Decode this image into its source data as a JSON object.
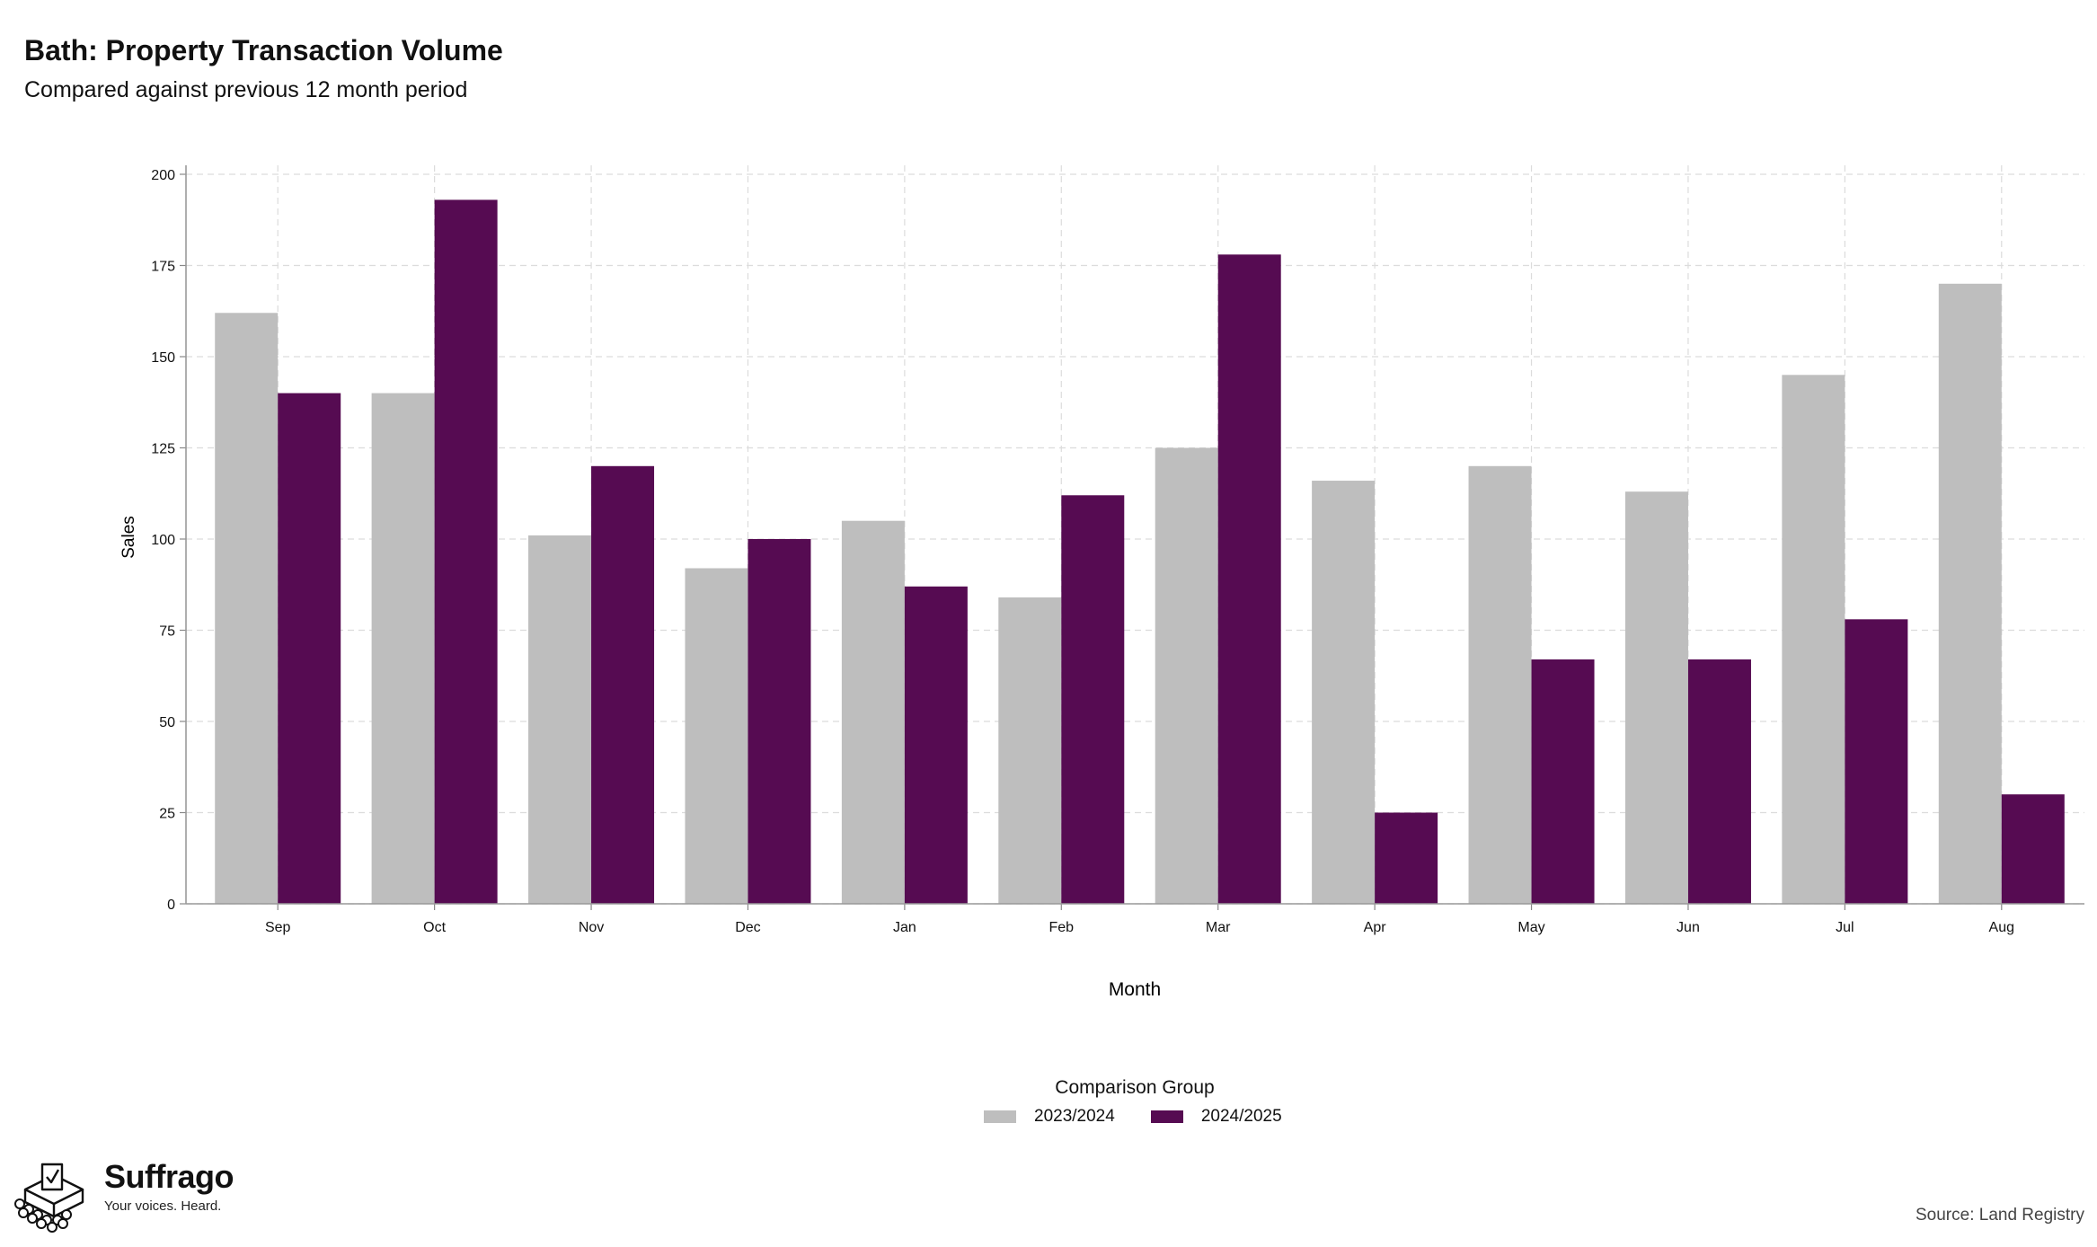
{
  "title": "Bath: Property Transaction Volume",
  "subtitle": "Compared against previous 12 month period",
  "source": "Source: Land Registry",
  "brand": {
    "name": "Suffrago",
    "tagline": "Your voices. Heard.",
    "logo_icon": "ballot-box-crowd-icon"
  },
  "legend": {
    "title": "Comparison Group",
    "items": [
      {
        "label": "2023/2024",
        "color": "#bebebe"
      },
      {
        "label": "2024/2025",
        "color": "#560b52"
      }
    ]
  },
  "chart_data": {
    "type": "bar",
    "xlabel": "Month",
    "ylabel": "Sales",
    "ylim": [
      0,
      200
    ],
    "yticks": [
      0,
      25,
      50,
      75,
      100,
      125,
      150,
      175,
      200
    ],
    "grid": true,
    "legend_position": "bottom",
    "categories": [
      "Sep",
      "Oct",
      "Nov",
      "Dec",
      "Jan",
      "Feb",
      "Mar",
      "Apr",
      "May",
      "Jun",
      "Jul",
      "Aug"
    ],
    "series": [
      {
        "name": "2023/2024",
        "color": "#bebebe",
        "values": [
          162,
          140,
          101,
          92,
          105,
          84,
          125,
          116,
          120,
          113,
          145,
          170
        ]
      },
      {
        "name": "2024/2025",
        "color": "#560b52",
        "values": [
          140,
          193,
          120,
          100,
          87,
          112,
          178,
          25,
          67,
          67,
          78,
          30
        ]
      }
    ]
  }
}
